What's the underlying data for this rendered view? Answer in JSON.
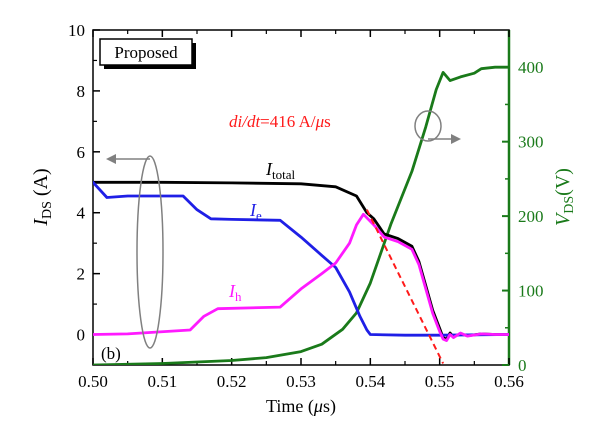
{
  "chart_data": {
    "type": "line",
    "panel_label": "(b)",
    "legend_box_text": "Proposed",
    "xlabel": {
      "prefix": "Time (",
      "unit_greek": "μ",
      "suffix": "s)"
    },
    "ylabel_left": {
      "main": "I",
      "sub": "DS",
      "unit": " (A)"
    },
    "ylabel_right": {
      "main": "V",
      "sub": "DS",
      "unit": "(V)"
    },
    "xlim": [
      0.5,
      0.56
    ],
    "ylim_left": [
      -1,
      10
    ],
    "ylim_right": [
      0,
      450
    ],
    "x_ticks": [
      "0.50",
      "0.51",
      "0.52",
      "0.53",
      "0.54",
      "0.55",
      "0.56"
    ],
    "y_left_ticks": [
      "0",
      "2",
      "4",
      "6",
      "8",
      "10"
    ],
    "y_right_ticks": [
      "0",
      "100",
      "200",
      "300",
      "400"
    ],
    "colors": {
      "total": "#000000",
      "electron": "#1f1fe6",
      "hole": "#ff1aff",
      "voltage": "#1a7a1a",
      "slope": "#ff1a1a",
      "annotation": "#808080"
    },
    "series_labels": {
      "total": {
        "main": "I",
        "sub": "total"
      },
      "electron": {
        "main": "I",
        "sub": "e"
      },
      "hole": {
        "main": "I",
        "sub": "h"
      }
    },
    "slope_annotation": {
      "italic": "di/dt",
      "rest": "=416 A/",
      "greek": "μ",
      "tail": "s"
    },
    "series": [
      {
        "name": "I_total",
        "axis": "left",
        "key": "total",
        "x": [
          0.5,
          0.51,
          0.52,
          0.53,
          0.535,
          0.538,
          0.5395,
          0.5405,
          0.542,
          0.544,
          0.546,
          0.547,
          0.548,
          0.549,
          0.55,
          0.5505,
          0.551,
          0.5515,
          0.552,
          0.553,
          0.554,
          0.556,
          0.558,
          0.56
        ],
        "y": [
          5.0,
          5.0,
          4.98,
          4.95,
          4.85,
          4.55,
          4.0,
          3.8,
          3.3,
          3.15,
          2.9,
          2.4,
          1.6,
          0.8,
          0.2,
          -0.1,
          -0.15,
          0.05,
          -0.08,
          0.03,
          -0.04,
          0.02,
          0.0,
          0.0
        ]
      },
      {
        "name": "I_e",
        "axis": "left",
        "key": "electron",
        "x": [
          0.5,
          0.502,
          0.505,
          0.51,
          0.513,
          0.515,
          0.517,
          0.52,
          0.527,
          0.53,
          0.533,
          0.535,
          0.537,
          0.5385,
          0.5395,
          0.54,
          0.545,
          0.55,
          0.56
        ],
        "y": [
          5.0,
          4.5,
          4.55,
          4.55,
          4.55,
          4.1,
          3.8,
          3.78,
          3.75,
          3.2,
          2.6,
          2.2,
          1.4,
          0.6,
          0.15,
          0.0,
          -0.02,
          -0.02,
          0.0
        ]
      },
      {
        "name": "I_h",
        "axis": "left",
        "key": "hole",
        "x": [
          0.5,
          0.505,
          0.514,
          0.516,
          0.518,
          0.527,
          0.53,
          0.533,
          0.535,
          0.537,
          0.538,
          0.539,
          0.5405,
          0.542,
          0.544,
          0.546,
          0.547,
          0.548,
          0.549,
          0.55,
          0.5505,
          0.551,
          0.5515,
          0.552,
          0.553,
          0.554,
          0.556,
          0.558,
          0.56
        ],
        "y": [
          0.0,
          0.02,
          0.15,
          0.6,
          0.85,
          0.9,
          1.5,
          2.0,
          2.35,
          3.0,
          3.6,
          3.95,
          3.6,
          3.2,
          3.05,
          2.8,
          2.3,
          1.5,
          0.7,
          0.1,
          -0.15,
          -0.2,
          0.0,
          -0.1,
          0.05,
          -0.05,
          0.02,
          0.0,
          0.0
        ]
      },
      {
        "name": "V_DS",
        "axis": "right",
        "key": "voltage",
        "x": [
          0.5,
          0.51,
          0.52,
          0.525,
          0.53,
          0.533,
          0.536,
          0.538,
          0.54,
          0.543,
          0.546,
          0.548,
          0.5495,
          0.5505,
          0.5515,
          0.553,
          0.555,
          0.556,
          0.558,
          0.56
        ],
        "y": [
          0,
          2,
          6,
          10,
          18,
          28,
          48,
          70,
          110,
          190,
          260,
          320,
          370,
          393,
          382,
          387,
          392,
          398,
          400,
          400
        ]
      }
    ],
    "slope_line": {
      "axis": "left",
      "x": [
        0.5395,
        0.5505
      ],
      "y": [
        4.1,
        -0.95
      ]
    }
  }
}
